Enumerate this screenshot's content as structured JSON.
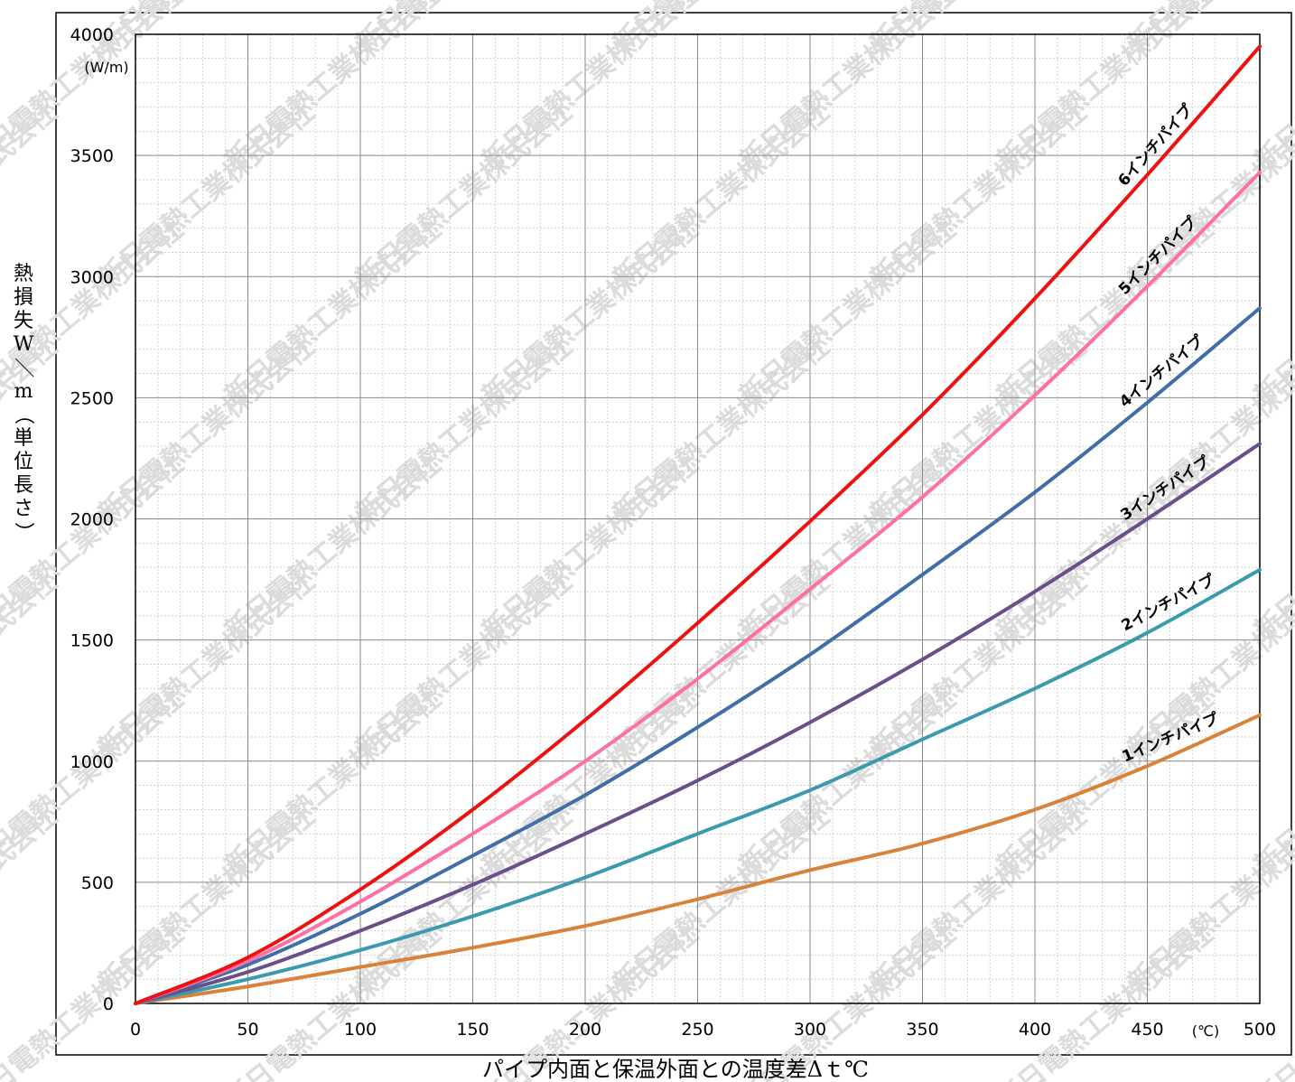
{
  "title": "",
  "chart_data": {
    "type": "line",
    "xlabel": "パイプ内面と保温外面との温度差Δｔ℃",
    "ylabel": "熱損失W／m（単位長さ）",
    "x_unit": "(℃)",
    "y_unit": "(W/m)",
    "xlim": [
      0,
      500
    ],
    "ylim": [
      0,
      4000
    ],
    "x_ticks": [
      0,
      50,
      100,
      150,
      200,
      250,
      300,
      350,
      400,
      450,
      500
    ],
    "y_ticks": [
      0,
      500,
      1000,
      1500,
      2000,
      2500,
      3000,
      3500,
      4000
    ],
    "grid": true,
    "watermark": "新日電熱工業株式会社",
    "x": [
      0,
      50,
      100,
      150,
      200,
      250,
      300,
      350,
      400,
      450,
      500
    ],
    "series": [
      {
        "name": "1インチパイプ",
        "color": "#d8823a",
        "values": [
          0,
          70,
          150,
          230,
          320,
          430,
          550,
          660,
          800,
          980,
          1190
        ]
      },
      {
        "name": "2インチパイプ",
        "color": "#3a9aae",
        "values": [
          0,
          100,
          220,
          360,
          520,
          700,
          880,
          1090,
          1300,
          1530,
          1790
        ]
      },
      {
        "name": "3インチパイプ",
        "color": "#6a4f8a",
        "values": [
          0,
          130,
          300,
          490,
          700,
          920,
          1160,
          1420,
          1700,
          2000,
          2310
        ]
      },
      {
        "name": "4インチパイプ",
        "color": "#3f6ea8",
        "values": [
          0,
          160,
          370,
          610,
          860,
          1140,
          1440,
          1770,
          2110,
          2480,
          2870
        ]
      },
      {
        "name": "5インチパイプ",
        "color": "#ff6fa6",
        "values": [
          0,
          175,
          420,
          700,
          1000,
          1340,
          1710,
          2090,
          2510,
          2960,
          3430
        ]
      },
      {
        "name": "6インチパイプ",
        "color": "#ee1111",
        "values": [
          0,
          190,
          470,
          800,
          1170,
          1570,
          1990,
          2430,
          2910,
          3420,
          3950
        ]
      }
    ]
  }
}
